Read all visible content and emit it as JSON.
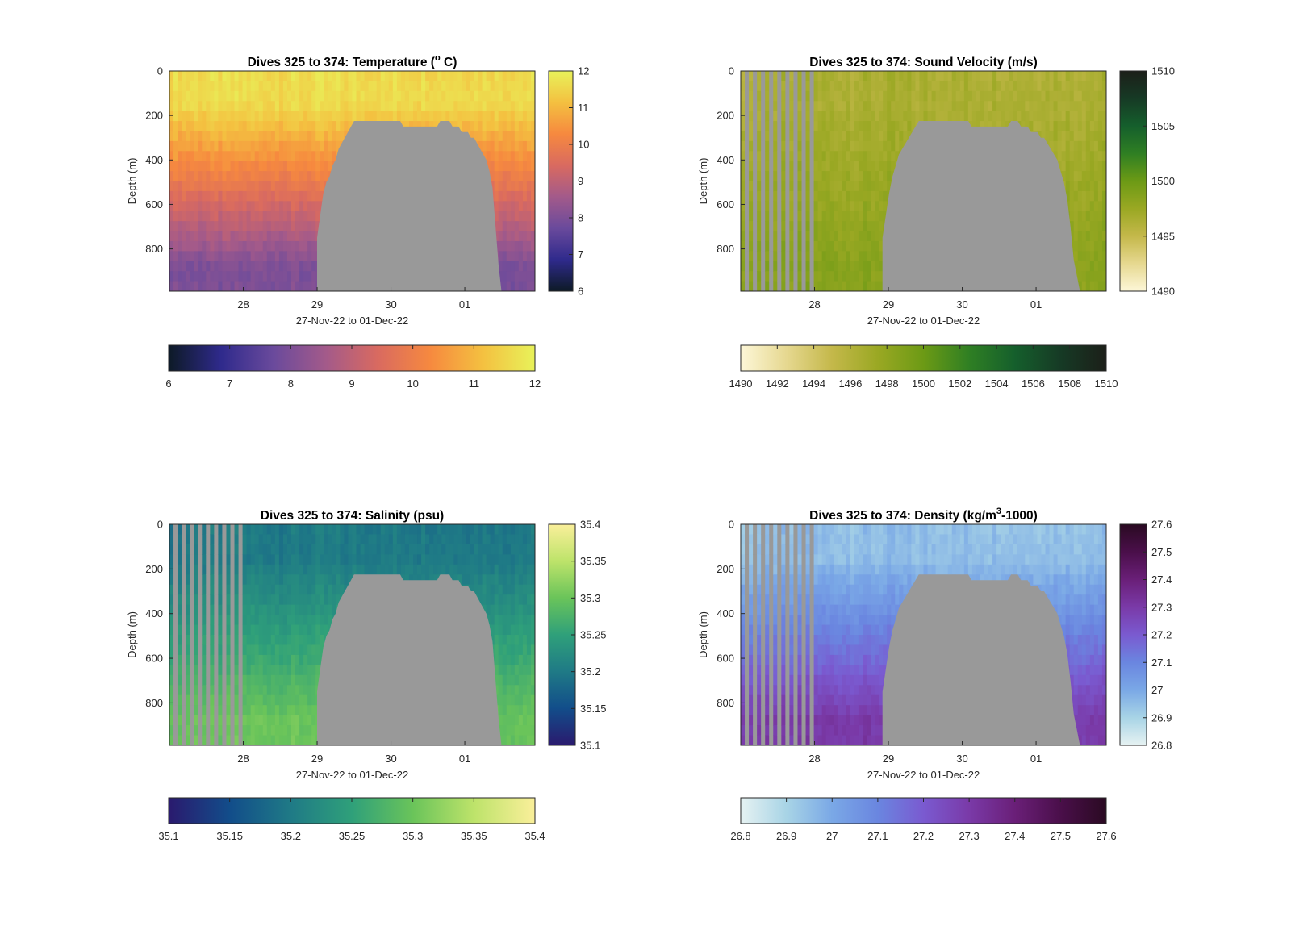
{
  "chart_data": [
    {
      "type": "heatmap",
      "title": "Dives 325 to 374: Temperature (",
      "title_sup": "o",
      "title_after": " C)",
      "ylabel": "Depth (m)",
      "xlabel": "27-Nov-22 to 01-Dec-22",
      "x_ticks": [
        "28",
        "29",
        "30",
        "01"
      ],
      "x_tick_values": [
        28.0,
        29.0,
        30.0,
        31.0
      ],
      "xlim": [
        27.0,
        31.95
      ],
      "y_ticks": [
        0,
        200,
        400,
        600,
        800
      ],
      "ylim": [
        0,
        990
      ],
      "colorbar_vertical_ticks": [
        "12",
        "11",
        "10",
        "9",
        "8",
        "7",
        "6"
      ],
      "colorbar_horizontal_ticks": [
        "6",
        "7",
        "8",
        "9",
        "10",
        "11",
        "12"
      ],
      "clim": [
        6,
        12
      ],
      "colormap": [
        "#0d1a26",
        "#2f2a8c",
        "#6a4a9c",
        "#a35a8a",
        "#d96a60",
        "#f6893f",
        "#f4c040",
        "#e8f25a"
      ],
      "surface_value": 11.6,
      "deep_value": 8.0,
      "sparse_until": 27.0,
      "seabed_color": "#999999",
      "seabed_depth": [
        [
          29.0,
          740
        ],
        [
          29.1,
          520
        ],
        [
          29.22,
          420
        ],
        [
          29.35,
          300
        ],
        [
          29.5,
          230
        ],
        [
          29.7,
          215
        ],
        [
          30.0,
          225
        ],
        [
          30.25,
          245
        ],
        [
          30.5,
          245
        ],
        [
          30.75,
          230
        ],
        [
          30.95,
          265
        ],
        [
          31.15,
          310
        ],
        [
          31.3,
          400
        ],
        [
          31.38,
          520
        ],
        [
          31.45,
          840
        ],
        [
          31.5,
          990
        ]
      ]
    },
    {
      "type": "heatmap",
      "title": "Dives 325 to 374: Sound Velocity (m/s)",
      "ylabel": "Depth (m)",
      "xlabel": "27-Nov-22 to 01-Dec-22",
      "x_ticks": [
        "28",
        "29",
        "30",
        "01"
      ],
      "x_tick_values": [
        28.0,
        29.0,
        30.0,
        31.0
      ],
      "xlim": [
        27.0,
        31.95
      ],
      "y_ticks": [
        0,
        200,
        400,
        600,
        800
      ],
      "ylim": [
        0,
        990
      ],
      "colorbar_vertical_ticks": [
        "1510",
        "1505",
        "1500",
        "1495",
        "1490"
      ],
      "colorbar_horizontal_ticks": [
        "1490",
        "1492",
        "1494",
        "1496",
        "1498",
        "1500",
        "1502",
        "1504",
        "1506",
        "1508",
        "1510"
      ],
      "clim": [
        1490,
        1510
      ],
      "colormap": [
        "#fdf7d8",
        "#e6d890",
        "#c4b84a",
        "#9aa823",
        "#6c9a15",
        "#2f7f23",
        "#155f2c",
        "#163a25",
        "#1c1f19"
      ],
      "surface_value": 1496.5,
      "deep_value": 1498.5,
      "sparse_until": 28.02,
      "seabed_color": "#999999",
      "seabed_depth": [
        [
          28.92,
          760
        ],
        [
          29.02,
          520
        ],
        [
          29.12,
          400
        ],
        [
          29.25,
          300
        ],
        [
          29.45,
          220
        ],
        [
          29.7,
          215
        ],
        [
          30.0,
          230
        ],
        [
          30.25,
          245
        ],
        [
          30.5,
          250
        ],
        [
          30.75,
          230
        ],
        [
          30.95,
          270
        ],
        [
          31.15,
          320
        ],
        [
          31.3,
          420
        ],
        [
          31.42,
          560
        ],
        [
          31.52,
          870
        ],
        [
          31.6,
          990
        ]
      ]
    },
    {
      "type": "heatmap",
      "title": "Dives 325 to 374: Salinity (psu)",
      "ylabel": "Depth (m)",
      "xlabel": "27-Nov-22 to 01-Dec-22",
      "x_ticks": [
        "28",
        "29",
        "30",
        "01"
      ],
      "x_tick_values": [
        28.0,
        29.0,
        30.0,
        31.0
      ],
      "xlim": [
        27.0,
        31.95
      ],
      "y_ticks": [
        0,
        200,
        400,
        600,
        800
      ],
      "ylim": [
        0,
        990
      ],
      "colorbar_vertical_ticks": [
        "35.4",
        "35.35",
        "35.3",
        "35.25",
        "35.2",
        "35.15",
        "35.1"
      ],
      "colorbar_horizontal_ticks": [
        "35.1",
        "35.15",
        "35.2",
        "35.25",
        "35.3",
        "35.35",
        "35.4"
      ],
      "clim": [
        35.1,
        35.4
      ],
      "colormap": [
        "#2a1a6e",
        "#124d8a",
        "#1f7a86",
        "#2fa07a",
        "#6ac45a",
        "#bde36a",
        "#faef9a"
      ],
      "surface_value": 35.2,
      "deep_value": 35.3,
      "sparse_until": 28.02,
      "seabed_color": "#999999",
      "seabed_depth": [
        [
          29.0,
          740
        ],
        [
          29.1,
          520
        ],
        [
          29.22,
          420
        ],
        [
          29.35,
          300
        ],
        [
          29.5,
          230
        ],
        [
          29.7,
          215
        ],
        [
          30.0,
          225
        ],
        [
          30.25,
          245
        ],
        [
          30.5,
          245
        ],
        [
          30.75,
          230
        ],
        [
          30.95,
          265
        ],
        [
          31.15,
          310
        ],
        [
          31.3,
          400
        ],
        [
          31.38,
          520
        ],
        [
          31.45,
          840
        ],
        [
          31.5,
          990
        ]
      ]
    },
    {
      "type": "heatmap",
      "title": "Dives 325 to 374: Density (kg/m",
      "title_sup": "3",
      "title_after": "-1000)",
      "ylabel": "Depth (m)",
      "xlabel": "27-Nov-22 to 01-Dec-22",
      "x_ticks": [
        "28",
        "29",
        "30",
        "01"
      ],
      "x_tick_values": [
        28.0,
        29.0,
        30.0,
        31.0
      ],
      "xlim": [
        27.0,
        31.95
      ],
      "y_ticks": [
        0,
        200,
        400,
        600,
        800
      ],
      "ylim": [
        0,
        990
      ],
      "colorbar_vertical_ticks": [
        "27.6",
        "27.5",
        "27.4",
        "27.3",
        "27.2",
        "27.1",
        "27",
        "26.9",
        "26.8"
      ],
      "colorbar_horizontal_ticks": [
        "26.8",
        "26.9",
        "27",
        "27.1",
        "27.2",
        "27.3",
        "27.4",
        "27.5",
        "27.6"
      ],
      "clim": [
        26.8,
        27.6
      ],
      "colormap": [
        "#e6f2f2",
        "#a8d4e6",
        "#7aa8e6",
        "#6a86e0",
        "#7a5ad0",
        "#7a3aa8",
        "#6a1f78",
        "#4a0f4a",
        "#2a0a22"
      ],
      "surface_value": 26.95,
      "deep_value": 27.3,
      "sparse_until": 28.02,
      "seabed_color": "#999999",
      "seabed_depth": [
        [
          28.92,
          760
        ],
        [
          29.02,
          520
        ],
        [
          29.12,
          400
        ],
        [
          29.25,
          300
        ],
        [
          29.45,
          220
        ],
        [
          29.7,
          215
        ],
        [
          30.0,
          230
        ],
        [
          30.25,
          245
        ],
        [
          30.5,
          250
        ],
        [
          30.75,
          230
        ],
        [
          30.95,
          270
        ],
        [
          31.15,
          320
        ],
        [
          31.3,
          420
        ],
        [
          31.42,
          560
        ],
        [
          31.52,
          870
        ],
        [
          31.6,
          990
        ]
      ]
    }
  ]
}
